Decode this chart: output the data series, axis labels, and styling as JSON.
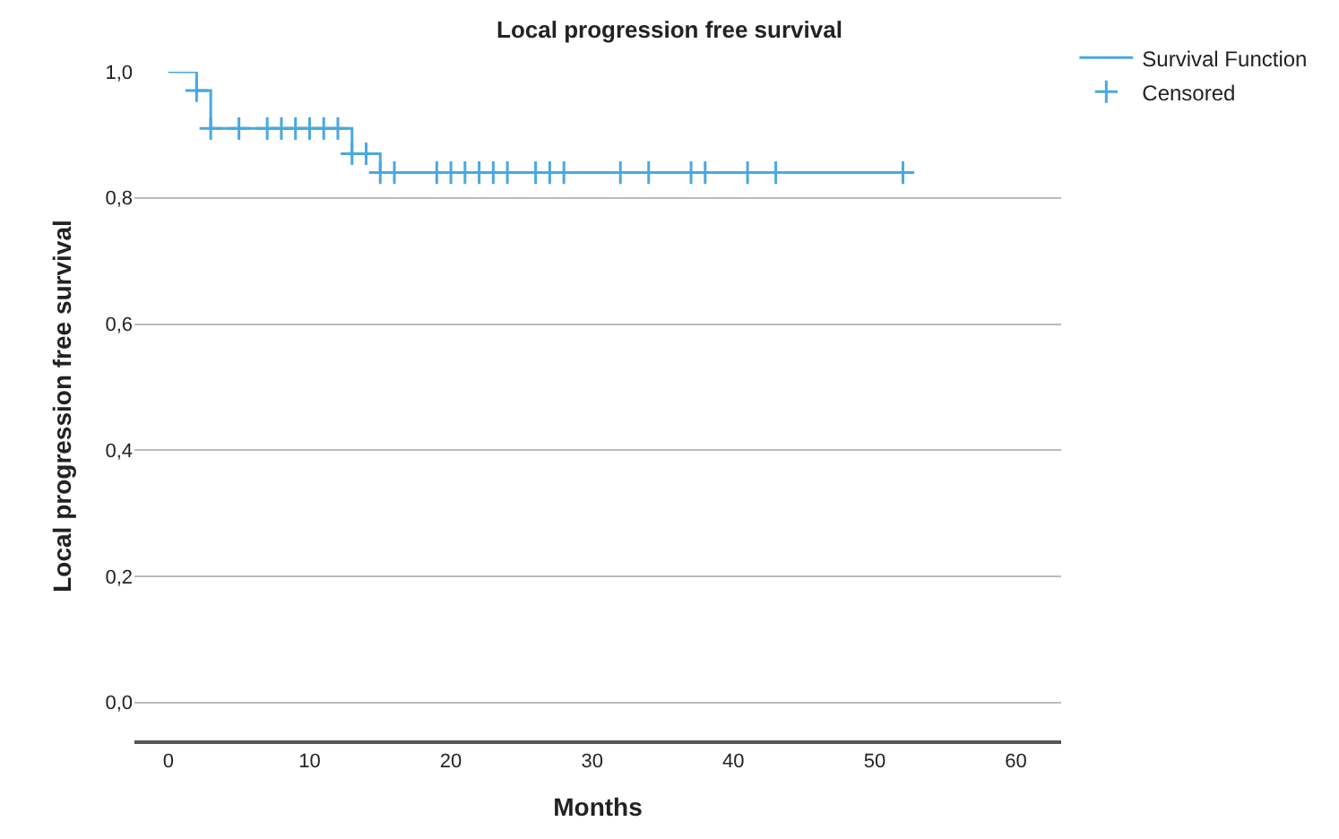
{
  "chart_data": {
    "type": "step",
    "title": "Local progression free survival",
    "xlabel": "Months",
    "ylabel": "Local progression free survival",
    "series": [
      {
        "name": "Survival Function",
        "color": "#4aa8e0",
        "x": [
          0,
          2,
          3,
          13,
          15,
          52
        ],
        "values": [
          1.0,
          0.97,
          0.91,
          0.87,
          0.84,
          0.84
        ]
      },
      {
        "name": "Censored",
        "type": "scatter",
        "marker": "cross",
        "color": "#4aa8e0",
        "x": [
          2,
          3,
          5,
          7,
          8,
          9,
          10,
          11,
          12,
          13,
          14,
          15,
          16,
          19,
          20,
          21,
          22,
          23,
          24,
          26,
          27,
          28,
          32,
          34,
          37,
          38,
          41,
          43,
          52
        ],
        "values": [
          0.97,
          0.91,
          0.91,
          0.91,
          0.91,
          0.91,
          0.91,
          0.91,
          0.91,
          0.87,
          0.87,
          0.84,
          0.84,
          0.84,
          0.84,
          0.84,
          0.84,
          0.84,
          0.84,
          0.84,
          0.84,
          0.84,
          0.84,
          0.84,
          0.84,
          0.84,
          0.84,
          0.84,
          0.84
        ]
      }
    ],
    "xlim": [
      -2.4,
      63.2
    ],
    "xticks": [
      0,
      10,
      20,
      30,
      40,
      50,
      60
    ],
    "ylim": [
      -0.06,
      1.0
    ],
    "yticks": [
      {
        "value": 0,
        "label": "0,0"
      },
      {
        "value": 0.2,
        "label": "0,2"
      },
      {
        "value": 0.4,
        "label": "0,4"
      },
      {
        "value": 0.6,
        "label": "0,6"
      },
      {
        "value": 0.8,
        "label": "0,8"
      },
      {
        "value": 1.0,
        "label": "1,0"
      }
    ],
    "grid": "y",
    "legend": "top right"
  }
}
